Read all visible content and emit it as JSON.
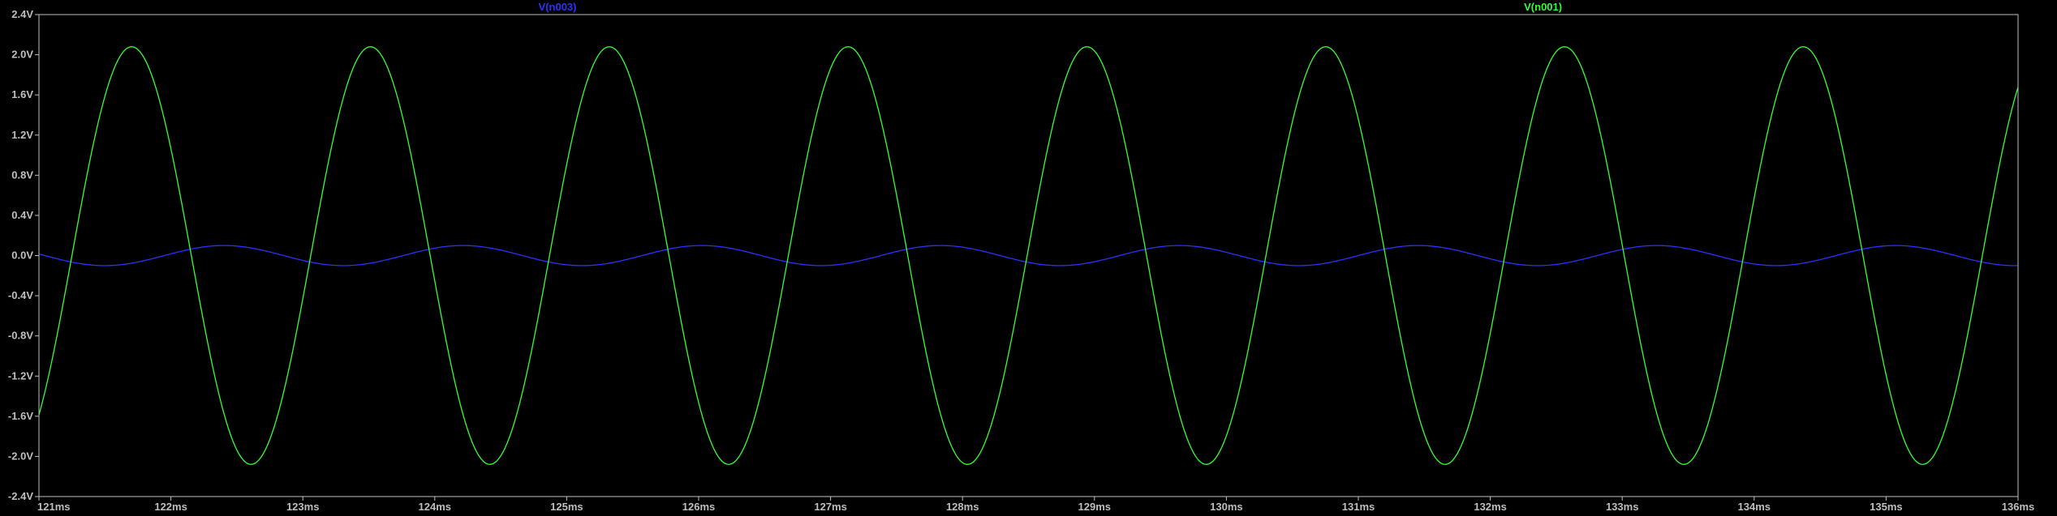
{
  "chart_data": {
    "type": "line",
    "title": "",
    "xlabel": "",
    "ylabel": "",
    "xlim": [
      121,
      136
    ],
    "ylim": [
      -2.4,
      2.4
    ],
    "x_unit": "ms",
    "y_unit": "V",
    "x_ticks": [
      "121ms",
      "122ms",
      "123ms",
      "124ms",
      "125ms",
      "126ms",
      "127ms",
      "128ms",
      "129ms",
      "130ms",
      "131ms",
      "132ms",
      "133ms",
      "134ms",
      "135ms",
      "136ms"
    ],
    "y_ticks": [
      "2.4V",
      "2.0V",
      "1.6V",
      "1.2V",
      "0.8V",
      "0.4V",
      "0.0V",
      "-0.4V",
      "-0.8V",
      "-1.2V",
      "-1.6V",
      "-2.0V",
      "-2.4V"
    ],
    "grid": false,
    "legend_placement": "top",
    "background_color": "#000000",
    "series": [
      {
        "name": "V(n003)",
        "color": "#2f2fff",
        "waveform": "sine",
        "amplitude": 0.1,
        "frequency_khz": 0.5525,
        "offset": 0.0,
        "phase_zero_cross_ms": 121.95,
        "x_start": 121,
        "x_end": 136
      },
      {
        "name": "V(n001)",
        "color": "#33ff33",
        "waveform": "sine",
        "amplitude": 2.08,
        "frequency_khz": 0.5525,
        "offset": 0.0,
        "phase_zero_cross_ms": 121.25,
        "x_start": 121,
        "x_end": 136
      }
    ]
  }
}
